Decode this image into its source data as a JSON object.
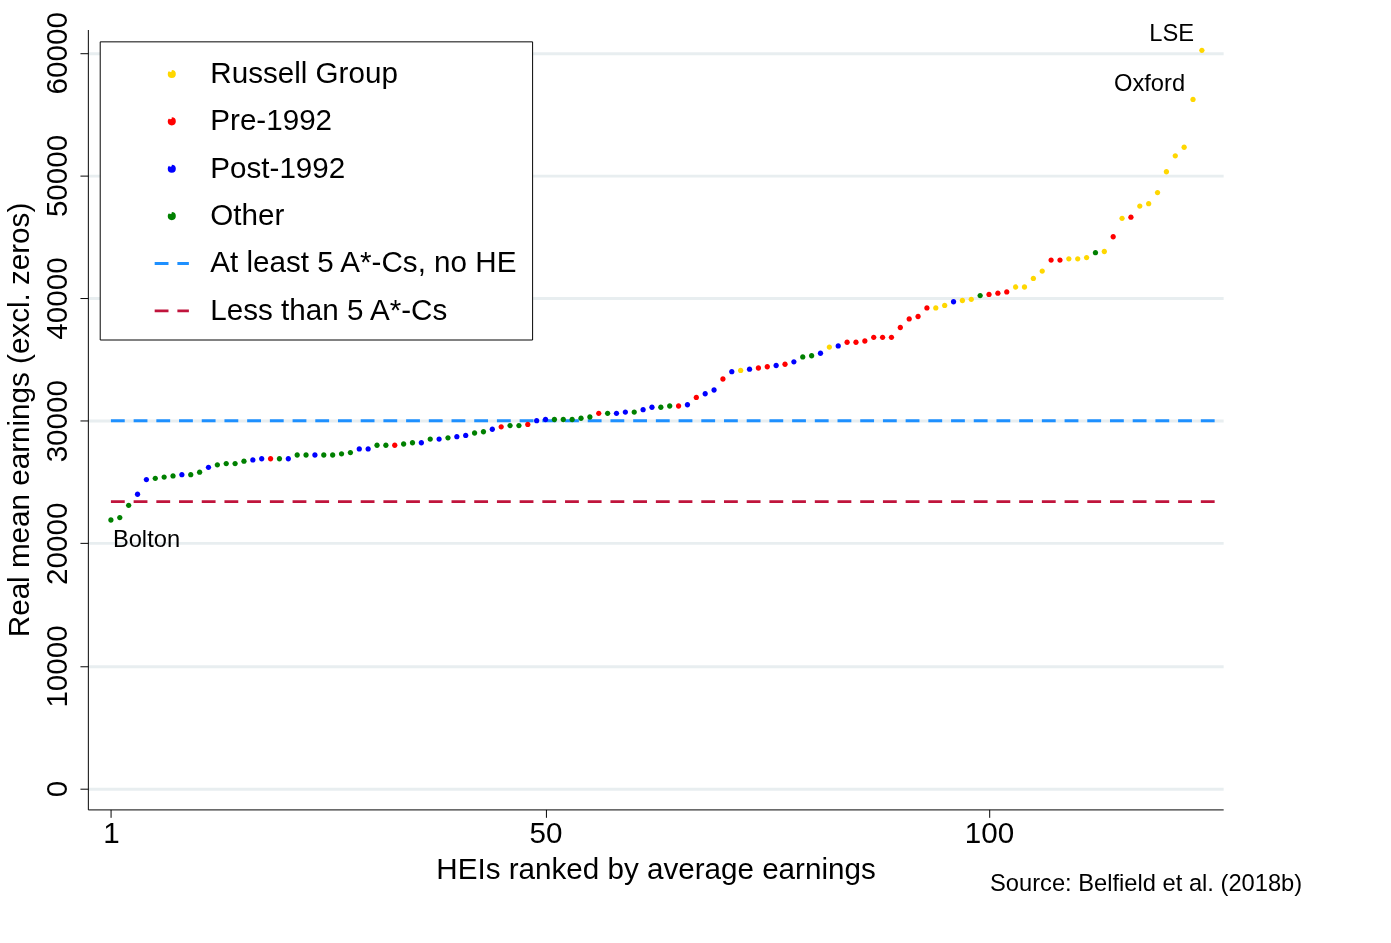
{
  "chart_data": {
    "type": "scatter",
    "xlabel": "HEIs ranked by average earnings",
    "ylabel": "Real mean earnings (excl. zeros)",
    "xlim": [
      -1.6,
      126.4
    ],
    "xticks": [
      1,
      50,
      100
    ],
    "ylim": [
      -1700,
      61900
    ],
    "yticks": [
      0,
      10000,
      20000,
      30000,
      40000,
      50000,
      60000
    ],
    "grid": "y",
    "legend": "top left",
    "marker": "circle",
    "series": [
      {
        "name": "Russell Group",
        "color": "#ffd700",
        "x": [
          72,
          82,
          94,
          95,
          97,
          98,
          103,
          104,
          105,
          106,
          109,
          110,
          111,
          113,
          115,
          117,
          118,
          119,
          120,
          121,
          122,
          123,
          124
        ],
        "values": [
          34100,
          36000,
          39200,
          39400,
          39800,
          39900,
          40900,
          40900,
          41600,
          42200,
          43200,
          43200,
          43300,
          43800,
          46500,
          47500,
          47700,
          48600,
          50300,
          51600,
          52300,
          56200,
          60200
        ]
      },
      {
        "name": "Pre-1992",
        "color": "#ff0000",
        "x": [
          19,
          33,
          45,
          48,
          56,
          65,
          67,
          70,
          74,
          75,
          77,
          84,
          85,
          86,
          87,
          88,
          89,
          90,
          91,
          92,
          93,
          100,
          101,
          102,
          107,
          108,
          114,
          116
        ],
        "values": [
          26900,
          28000,
          29500,
          29700,
          30600,
          31200,
          31900,
          33400,
          34300,
          34400,
          34600,
          36400,
          36400,
          36500,
          36800,
          36800,
          36800,
          37600,
          38300,
          38500,
          39200,
          40300,
          40400,
          40500,
          43100,
          43100,
          45000,
          46600
        ]
      },
      {
        "name": "Post-1992",
        "color": "#0000ff",
        "x": [
          4,
          5,
          9,
          12,
          17,
          18,
          21,
          24,
          29,
          30,
          36,
          38,
          40,
          41,
          44,
          49,
          50,
          58,
          59,
          61,
          62,
          66,
          68,
          69,
          71,
          73,
          76,
          78,
          81,
          83,
          96
        ],
        "values": [
          24000,
          25200,
          25600,
          26200,
          26800,
          26900,
          26900,
          27200,
          27700,
          27700,
          28200,
          28500,
          28700,
          28800,
          29300,
          30000,
          30100,
          30600,
          30700,
          30900,
          31100,
          31300,
          32200,
          32500,
          34000,
          34200,
          34500,
          34800,
          35500,
          36100,
          39700
        ]
      },
      {
        "name": "Other",
        "color": "#008000",
        "x": [
          1,
          2,
          3,
          6,
          7,
          8,
          10,
          11,
          13,
          14,
          15,
          16,
          20,
          22,
          23,
          25,
          26,
          27,
          28,
          31,
          32,
          34,
          35,
          37,
          39,
          42,
          43,
          46,
          47,
          51,
          52,
          53,
          54,
          55,
          57,
          60,
          63,
          64,
          79,
          80,
          99,
          112
        ],
        "values": [
          21900,
          22100,
          23100,
          25300,
          25400,
          25500,
          25600,
          25800,
          26400,
          26500,
          26500,
          26700,
          26900,
          27200,
          27200,
          27200,
          27200,
          27300,
          27400,
          28000,
          28000,
          28100,
          28200,
          28500,
          28600,
          29000,
          29100,
          29600,
          29600,
          30100,
          30100,
          30100,
          30200,
          30300,
          30600,
          30700,
          31100,
          31200,
          35200,
          35300,
          40200,
          43700
        ]
      }
    ],
    "ref_lines": [
      {
        "axis": "y",
        "value": 30000,
        "label": "At least 5 A*-Cs, no HE",
        "color": "#1e90ff",
        "line_style": "dashed"
      },
      {
        "axis": "y",
        "value": 23400,
        "label": "Less than 5 A*-Cs",
        "color": "#c0143c",
        "line_style": "dashed"
      }
    ],
    "annotations": [
      {
        "text": "LSE",
        "x": 124,
        "y": 60200
      },
      {
        "text": "Oxford",
        "x": 123,
        "y": 56200
      },
      {
        "text": "Bolton",
        "x": 1,
        "y": 21900
      },
      "Source: Belfield et al. (2018b)"
    ]
  }
}
